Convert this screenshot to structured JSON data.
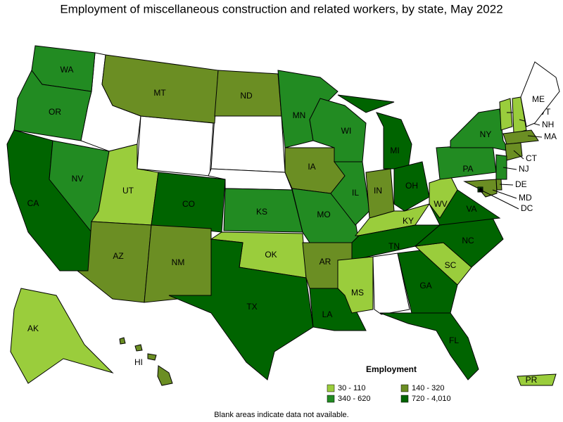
{
  "title": "Employment of miscellaneous construction and related workers, by state, May 2022",
  "legend": {
    "title": "Employment",
    "bins": [
      {
        "label": "30 - 110",
        "color": "#9acd3c"
      },
      {
        "label": "140 - 320",
        "color": "#6b8e23"
      },
      {
        "label": "340 - 620",
        "color": "#228b22"
      },
      {
        "label": "720 - 4,010",
        "color": "#006400"
      }
    ]
  },
  "states": [
    {
      "abbr": "WA",
      "bin": 2
    },
    {
      "abbr": "OR",
      "bin": 2
    },
    {
      "abbr": "CA",
      "bin": 3
    },
    {
      "abbr": "NV",
      "bin": 2
    },
    {
      "abbr": "MT",
      "bin": 1
    },
    {
      "abbr": "UT",
      "bin": 0
    },
    {
      "abbr": "CO",
      "bin": 3
    },
    {
      "abbr": "AZ",
      "bin": 1
    },
    {
      "abbr": "NM",
      "bin": 1
    },
    {
      "abbr": "ND",
      "bin": 1
    },
    {
      "abbr": "KS",
      "bin": 2
    },
    {
      "abbr": "OK",
      "bin": 0
    },
    {
      "abbr": "TX",
      "bin": 3
    },
    {
      "abbr": "MN",
      "bin": 2
    },
    {
      "abbr": "IA",
      "bin": 1
    },
    {
      "abbr": "MO",
      "bin": 2
    },
    {
      "abbr": "AR",
      "bin": 1
    },
    {
      "abbr": "LA",
      "bin": 3
    },
    {
      "abbr": "WI",
      "bin": 2
    },
    {
      "abbr": "IL",
      "bin": 2
    },
    {
      "abbr": "MI",
      "bin": 3
    },
    {
      "abbr": "IN",
      "bin": 1
    },
    {
      "abbr": "OH",
      "bin": 3
    },
    {
      "abbr": "KY",
      "bin": 0
    },
    {
      "abbr": "TN",
      "bin": 3
    },
    {
      "abbr": "MS",
      "bin": 0
    },
    {
      "abbr": "GA",
      "bin": 3
    },
    {
      "abbr": "FL",
      "bin": 3
    },
    {
      "abbr": "SC",
      "bin": 0
    },
    {
      "abbr": "NC",
      "bin": 3
    },
    {
      "abbr": "VA",
      "bin": 3
    },
    {
      "abbr": "WV",
      "bin": 0
    },
    {
      "abbr": "PA",
      "bin": 2
    },
    {
      "abbr": "NY",
      "bin": 2
    },
    {
      "abbr": "VT",
      "bin": 0
    },
    {
      "abbr": "NH",
      "bin": 0
    },
    {
      "abbr": "ME",
      "bin": null
    },
    {
      "abbr": "MA",
      "bin": 1
    },
    {
      "abbr": "CT",
      "bin": 1
    },
    {
      "abbr": "NJ",
      "bin": 2
    },
    {
      "abbr": "DE",
      "bin": 1
    },
    {
      "abbr": "MD",
      "bin": 1
    },
    {
      "abbr": "DC",
      "bin": 3
    },
    {
      "abbr": "AK",
      "bin": 0
    },
    {
      "abbr": "HI",
      "bin": 1
    },
    {
      "abbr": "PR",
      "bin": 0
    }
  ],
  "note": "Blank areas indicate data not available."
}
